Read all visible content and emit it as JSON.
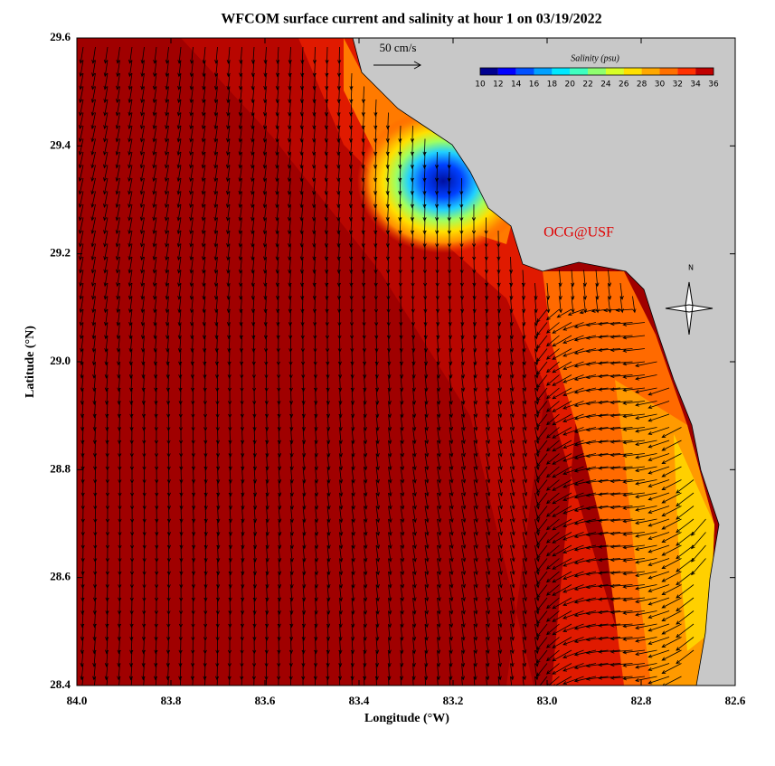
{
  "chart_data": {
    "type": "map",
    "title": "WFCOM surface current and salinity at hour 1 on 03/19/2022",
    "x_label": "Longitude (°W)",
    "y_label": "Latitude (°N)",
    "xlim": [
      84.0,
      82.6
    ],
    "xticks": [
      {
        "value": 84.0,
        "label": "84.0"
      },
      83.8,
      83.6,
      83.4,
      83.2,
      {
        "value": 83.0,
        "label": "83.0"
      },
      82.8,
      82.6
    ],
    "ylim": [
      28.4,
      29.6
    ],
    "yticks": [
      28.4,
      28.6,
      28.8,
      {
        "value": 29.0,
        "label": "29.0"
      },
      29.2,
      29.4,
      29.6
    ],
    "colorbar": {
      "title": "Salinity (psu)",
      "lim": [
        10,
        36
      ],
      "ticks": [
        10,
        12,
        14,
        16,
        18,
        20,
        22,
        24,
        26,
        28,
        30,
        32,
        34,
        36
      ],
      "colors": [
        "#00008f",
        "#0000ff",
        "#0050ff",
        "#00a0ff",
        "#00e8ff",
        "#40ffc0",
        "#90ff70",
        "#d8ff28",
        "#ffe000",
        "#ffa800",
        "#ff7000",
        "#ff3000",
        "#c00000"
      ]
    },
    "scale_arrow_label": "50 cm/s",
    "credit": "OCG@USF",
    "north_label": "N"
  }
}
